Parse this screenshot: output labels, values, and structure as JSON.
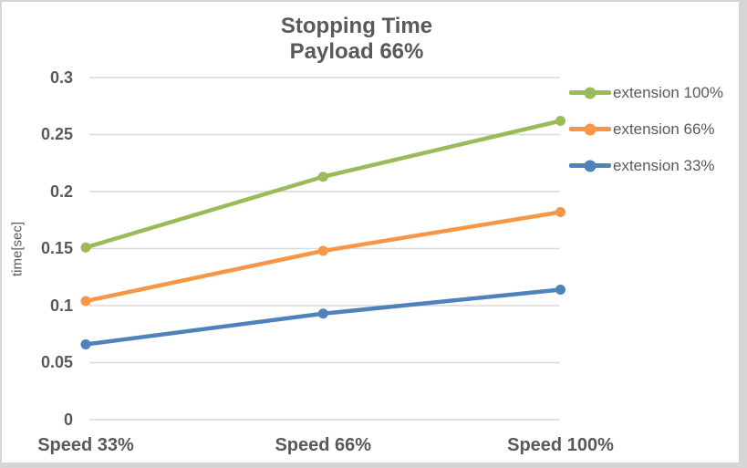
{
  "chart_data": {
    "type": "line",
    "title": "Stopping Time",
    "subtitle": "Payload 66%",
    "ylabel": "time[sec]",
    "xlabel": "",
    "categories": [
      "Speed 33%",
      "Speed 66%",
      "Speed 100%"
    ],
    "series": [
      {
        "name": "extension 100%",
        "color": "#9BBB59",
        "values": [
          0.151,
          0.213,
          0.262
        ]
      },
      {
        "name": "extension 66%",
        "color": "#F79646",
        "values": [
          0.104,
          0.148,
          0.182
        ]
      },
      {
        "name": "extension 33%",
        "color": "#4F81BD",
        "values": [
          0.066,
          0.093,
          0.114
        ]
      }
    ],
    "ylim": [
      0,
      0.3
    ],
    "yticks": [
      0,
      0.05,
      0.1,
      0.15,
      0.2,
      0.25,
      0.3
    ],
    "ytick_labels": [
      "0",
      "0.05",
      "0.1",
      "0.15",
      "0.2",
      "0.25",
      "0.3"
    ],
    "grid": true,
    "legend_position": "right",
    "colors": {
      "grid": "#D9D9D9",
      "text": "#595959",
      "frame": "#D5D5D5",
      "background": "#FFFFFF"
    }
  }
}
